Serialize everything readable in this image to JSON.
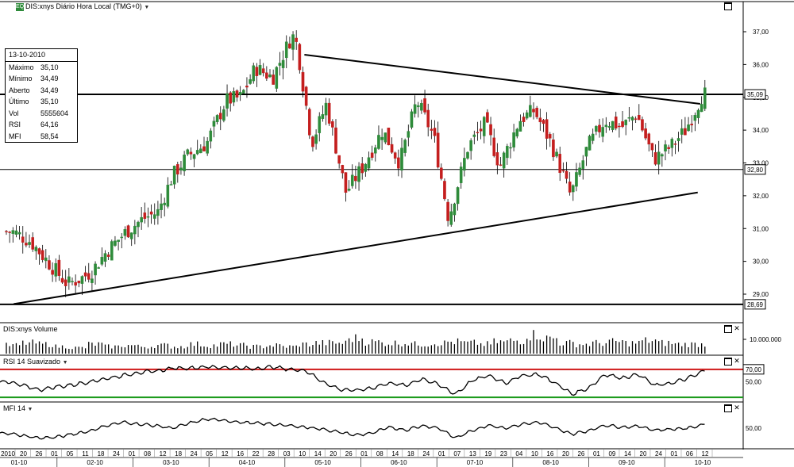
{
  "window": {
    "title": "DIS:xnys Diário Hora Local (TMG+0)",
    "logo": "EQ"
  },
  "info_box": {
    "date": "13-10-2010",
    "rows": [
      {
        "label": "Máximo",
        "value": "35,10"
      },
      {
        "label": "Mínimo",
        "value": "34,49"
      },
      {
        "label": "Aberto",
        "value": "34,49"
      },
      {
        "label": "Último",
        "value": "35,10"
      },
      {
        "label": "Vol",
        "value": "5555604"
      },
      {
        "label": "RSI",
        "value": "64,16"
      },
      {
        "label": "MFI",
        "value": "58,54"
      }
    ]
  },
  "panels": {
    "volume_title": "DIS:xnys Volume",
    "rsi_title": "RSI 14 Suavizado",
    "mfi_title": "MFI 14"
  },
  "colors": {
    "up_candle": "#2e8b3a",
    "down_candle": "#c41e1e",
    "rsi_upper": "#d01818",
    "rsi_lower": "#1a9a1a",
    "line": "#000000"
  },
  "chart_data": [
    {
      "type": "candlestick",
      "title": "DIS:xnys Diário Hora Local (TMG+0)",
      "y_ticks": [
        "37,00",
        "36,00",
        "35,00",
        "34,00",
        "33,00",
        "32,00",
        "31,00",
        "30,00",
        "29,00"
      ],
      "ylim": [
        28.5,
        37.8
      ],
      "highlighted_values": [
        "35,09",
        "32,80",
        "28,69"
      ],
      "horizontal_lines": [
        35.09,
        32.8,
        28.69
      ],
      "trendlines": [
        {
          "from": [
            "2010-05-03",
            36.3
          ],
          "to": [
            "2010-10-12",
            34.8
          ]
        },
        {
          "from": [
            "2010-01-04",
            28.7
          ],
          "to": [
            "2010-10-11",
            32.1
          ]
        }
      ],
      "close_points": [
        [
          "2010-01-04",
          30.9
        ],
        [
          "2010-01-11",
          30.6
        ],
        [
          "2010-01-19",
          29.9
        ],
        [
          "2010-01-26",
          29.3
        ],
        [
          "2010-02-01",
          29.5
        ],
        [
          "2010-02-05",
          29.7
        ],
        [
          "2010-02-11",
          30.3
        ],
        [
          "2010-02-19",
          30.9
        ],
        [
          "2010-02-26",
          31.3
        ],
        [
          "2010-03-04",
          31.5
        ],
        [
          "2010-03-10",
          32.6
        ],
        [
          "2010-03-16",
          33.2
        ],
        [
          "2010-03-24",
          33.6
        ],
        [
          "2010-04-01",
          34.9
        ],
        [
          "2010-04-07",
          35.0
        ],
        [
          "2010-04-13",
          35.9
        ],
        [
          "2010-04-20",
          35.6
        ],
        [
          "2010-04-28",
          36.9
        ],
        [
          "2010-04-30",
          36.6
        ],
        [
          "2010-05-06",
          33.6
        ],
        [
          "2010-05-12",
          34.8
        ],
        [
          "2010-05-20",
          32.1
        ],
        [
          "2010-05-27",
          32.9
        ],
        [
          "2010-06-04",
          34.0
        ],
        [
          "2010-06-11",
          33.0
        ],
        [
          "2010-06-18",
          34.9
        ],
        [
          "2010-06-25",
          33.8
        ],
        [
          "2010-07-01",
          31.3
        ],
        [
          "2010-07-09",
          33.5
        ],
        [
          "2010-07-16",
          34.2
        ],
        [
          "2010-07-22",
          32.9
        ],
        [
          "2010-07-30",
          34.3
        ],
        [
          "2010-08-05",
          34.6
        ],
        [
          "2010-08-12",
          33.6
        ],
        [
          "2010-08-20",
          32.0
        ],
        [
          "2010-08-27",
          33.5
        ],
        [
          "2010-09-03",
          34.3
        ],
        [
          "2010-09-10",
          34.1
        ],
        [
          "2010-09-16",
          34.5
        ],
        [
          "2010-09-23",
          33.1
        ],
        [
          "2010-09-30",
          33.5
        ],
        [
          "2010-10-06",
          34.0
        ],
        [
          "2010-10-13",
          35.1
        ]
      ]
    },
    {
      "type": "bar",
      "title": "DIS:xnys Volume",
      "y_ticks": [
        "10.000.000"
      ],
      "ylim": [
        0,
        20000000
      ],
      "weekly_volume_millions": [
        7,
        9,
        8,
        6,
        5,
        8,
        6,
        7,
        6,
        7,
        6,
        8,
        7,
        8,
        7,
        6,
        7,
        6,
        8,
        9,
        9,
        13,
        10,
        9,
        9,
        8,
        9,
        10,
        9,
        8,
        10,
        11,
        16,
        13,
        9,
        8,
        9,
        10,
        9,
        11,
        9,
        8,
        8
      ]
    },
    {
      "type": "line",
      "title": "RSI 14 Suavizado",
      "y_ticks": [
        "70,00",
        "50,00"
      ],
      "ylim": [
        20,
        80
      ],
      "reference_lines": [
        70,
        25
      ],
      "weekly_values": [
        50,
        44,
        37,
        42,
        45,
        50,
        55,
        60,
        65,
        67,
        72,
        72,
        74,
        73,
        72,
        71,
        74,
        70,
        68,
        50,
        38,
        36,
        40,
        48,
        44,
        55,
        45,
        30,
        52,
        60,
        48,
        60,
        62,
        48,
        30,
        40,
        62,
        56,
        62,
        44,
        48,
        56,
        68
      ]
    },
    {
      "type": "line",
      "title": "MFI 14",
      "y_ticks": [
        "50,00"
      ],
      "ylim": [
        10,
        90
      ],
      "weekly_values": [
        40,
        35,
        30,
        32,
        38,
        44,
        55,
        62,
        58,
        55,
        50,
        60,
        68,
        66,
        62,
        60,
        58,
        55,
        52,
        48,
        42,
        36,
        40,
        52,
        46,
        55,
        50,
        30,
        45,
        56,
        50,
        58,
        62,
        50,
        38,
        45,
        56,
        52,
        54,
        46,
        48,
        50,
        58
      ]
    }
  ],
  "x_axis": {
    "day_ticks": [
      "2010",
      "20",
      "26",
      "01",
      "05",
      "11",
      "18",
      "24",
      "01",
      "08",
      "12",
      "18",
      "24",
      "05",
      "12",
      "16",
      "22",
      "28",
      "03",
      "10",
      "14",
      "20",
      "26",
      "01",
      "08",
      "14",
      "18",
      "24",
      "01",
      "07",
      "13",
      "19",
      "23",
      "04",
      "10",
      "16",
      "20",
      "26",
      "01",
      "09",
      "14",
      "20",
      "24",
      "01",
      "06",
      "12"
    ],
    "months": [
      "01-10",
      "02-10",
      "03-10",
      "04-10",
      "05-10",
      "06-10",
      "07-10",
      "08-10",
      "09-10",
      "10-10"
    ]
  }
}
